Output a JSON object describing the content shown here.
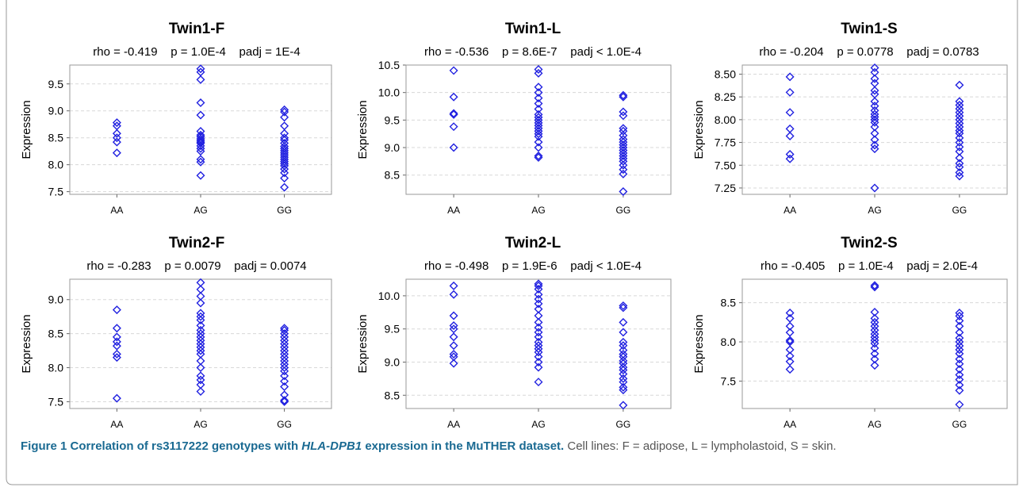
{
  "colors": {
    "marker": "#2020e0",
    "grid": "#d8d8d8",
    "border": "#9a9a9a",
    "caption_lead": "#1a6a92"
  },
  "chart_data": [
    {
      "type": "scatter",
      "title": "Twin1-F",
      "stats": "rho = -0.419    p = 1.0E-4    padj = 1E-4",
      "ylabel": "Expression",
      "categories": [
        "AA",
        "AG",
        "GG"
      ],
      "ylim": [
        7.45,
        9.85
      ],
      "yticks": [
        7.5,
        8.0,
        8.5,
        9.0,
        9.5
      ],
      "yticklabels": [
        "7.5",
        "8.0",
        "8.5",
        "9.0",
        "9.5"
      ],
      "grid": true,
      "points": [
        [
          8.22,
          8.42,
          8.5,
          8.58,
          8.72,
          8.78
        ],
        [
          7.8,
          8.05,
          8.1,
          8.25,
          8.3,
          8.35,
          8.4,
          8.42,
          8.45,
          8.48,
          8.52,
          8.55,
          8.62,
          8.92,
          9.15,
          9.58,
          9.72,
          9.78
        ],
        [
          7.58,
          7.75,
          7.85,
          7.92,
          7.98,
          8.02,
          8.06,
          8.1,
          8.14,
          8.18,
          8.22,
          8.26,
          8.3,
          8.34,
          8.4,
          8.46,
          8.5,
          8.58,
          8.72,
          8.88,
          8.98,
          9.02
        ]
      ]
    },
    {
      "type": "scatter",
      "title": "Twin1-L",
      "stats": "rho = -0.536    p = 8.6E-7    padj < 1.0E-4",
      "ylabel": "Expression",
      "categories": [
        "AA",
        "AG",
        "GG"
      ],
      "ylim": [
        8.15,
        10.5
      ],
      "yticks": [
        8.5,
        9.0,
        9.5,
        10.0,
        10.5
      ],
      "yticklabels": [
        "8.5",
        "9.0",
        "9.5",
        "10.0",
        "10.5"
      ],
      "grid": true,
      "points": [
        [
          9.0,
          9.38,
          9.6,
          9.62,
          9.92,
          10.4
        ],
        [
          8.82,
          8.85,
          9.0,
          9.1,
          9.2,
          9.25,
          9.3,
          9.35,
          9.4,
          9.45,
          9.5,
          9.55,
          9.6,
          9.7,
          9.8,
          9.9,
          10.0,
          10.1,
          10.35,
          10.42
        ],
        [
          8.2,
          8.52,
          8.6,
          8.68,
          8.75,
          8.8,
          8.85,
          8.9,
          8.95,
          9.0,
          9.05,
          9.1,
          9.15,
          9.22,
          9.3,
          9.35,
          9.58,
          9.65,
          9.92,
          9.95
        ]
      ]
    },
    {
      "type": "scatter",
      "title": "Twin1-S",
      "stats": "rho = -0.204    p = 0.0778    padj = 0.0783",
      "ylabel": "Expression",
      "categories": [
        "AA",
        "AG",
        "GG"
      ],
      "ylim": [
        7.18,
        8.6
      ],
      "yticks": [
        7.25,
        7.5,
        7.75,
        8.0,
        8.25,
        8.5
      ],
      "yticklabels": [
        "7.25",
        "7.50",
        "7.75",
        "8.00",
        "8.25",
        "8.50"
      ],
      "grid": true,
      "points": [
        [
          7.57,
          7.62,
          7.82,
          7.9,
          8.08,
          8.3,
          8.47
        ],
        [
          7.25,
          7.68,
          7.72,
          7.78,
          7.85,
          7.92,
          7.97,
          8.0,
          8.03,
          8.06,
          8.1,
          8.15,
          8.2,
          8.28,
          8.32,
          8.4,
          8.45,
          8.52,
          8.57
        ],
        [
          7.38,
          7.42,
          7.48,
          7.52,
          7.58,
          7.65,
          7.7,
          7.75,
          7.8,
          7.85,
          7.88,
          7.92,
          7.96,
          8.0,
          8.04,
          8.08,
          8.12,
          8.16,
          8.2,
          8.38
        ]
      ]
    },
    {
      "type": "scatter",
      "title": "Twin2-F",
      "stats": "rho = -0.283    p = 0.0079    padj = 0.0074",
      "ylabel": "Expression",
      "categories": [
        "AA",
        "AG",
        "GG"
      ],
      "ylim": [
        7.4,
        9.3
      ],
      "yticks": [
        7.5,
        8.0,
        8.5,
        9.0
      ],
      "yticklabels": [
        "7.5",
        "8.0",
        "8.5",
        "9.0"
      ],
      "grid": true,
      "points": [
        [
          7.55,
          8.15,
          8.2,
          8.32,
          8.38,
          8.45,
          8.58,
          8.85
        ],
        [
          7.65,
          7.75,
          7.82,
          7.88,
          8.0,
          8.1,
          8.2,
          8.25,
          8.3,
          8.35,
          8.4,
          8.45,
          8.5,
          8.55,
          8.62,
          8.7,
          8.75,
          8.8,
          8.95,
          9.05,
          9.15,
          9.25
        ],
        [
          7.5,
          7.52,
          7.6,
          7.72,
          7.8,
          7.88,
          7.95,
          8.0,
          8.05,
          8.1,
          8.15,
          8.2,
          8.25,
          8.3,
          8.35,
          8.4,
          8.45,
          8.5,
          8.55,
          8.58
        ]
      ]
    },
    {
      "type": "scatter",
      "title": "Twin2-L",
      "stats": "rho = -0.498    p = 1.9E-6    padj < 1.0E-4",
      "ylabel": "Expression",
      "categories": [
        "AA",
        "AG",
        "GG"
      ],
      "ylim": [
        8.3,
        10.25
      ],
      "yticks": [
        8.5,
        9.0,
        9.5,
        10.0
      ],
      "yticklabels": [
        "8.5",
        "9.0",
        "9.5",
        "10.0"
      ],
      "grid": true,
      "points": [
        [
          8.98,
          9.08,
          9.12,
          9.25,
          9.38,
          9.5,
          9.55,
          9.7,
          10.02,
          10.15
        ],
        [
          8.7,
          8.92,
          9.0,
          9.08,
          9.15,
          9.2,
          9.25,
          9.3,
          9.38,
          9.45,
          9.52,
          9.6,
          9.7,
          9.8,
          9.88,
          9.95,
          10.02,
          10.1,
          10.15,
          10.18
        ],
        [
          8.35,
          8.58,
          8.62,
          8.7,
          8.75,
          8.82,
          8.88,
          8.92,
          8.98,
          9.02,
          9.08,
          9.12,
          9.18,
          9.25,
          9.3,
          9.45,
          9.6,
          9.82,
          9.85
        ]
      ]
    },
    {
      "type": "scatter",
      "title": "Twin2-S",
      "stats": "rho = -0.405    p = 1.0E-4    padj = 2.0E-4",
      "ylabel": "Expression",
      "categories": [
        "AA",
        "AG",
        "GG"
      ],
      "ylim": [
        7.15,
        8.8
      ],
      "yticks": [
        7.5,
        8.0,
        8.5
      ],
      "yticklabels": [
        "7.5",
        "8.0",
        "8.5"
      ],
      "grid": true,
      "points": [
        [
          7.65,
          7.75,
          7.82,
          7.9,
          8.0,
          8.02,
          8.12,
          8.2,
          8.3,
          8.37
        ],
        [
          7.7,
          7.78,
          7.85,
          7.92,
          7.98,
          8.02,
          8.06,
          8.1,
          8.15,
          8.2,
          8.25,
          8.3,
          8.38,
          8.7,
          8.72
        ],
        [
          7.2,
          7.38,
          7.45,
          7.52,
          7.58,
          7.65,
          7.72,
          7.78,
          7.85,
          7.9,
          7.95,
          8.0,
          8.05,
          8.12,
          8.2,
          8.27,
          8.33,
          8.37
        ]
      ]
    }
  ],
  "caption": {
    "label": "Figure 1",
    "text_before": "Correlation of rs3117222 genotypes with",
    "gene": "HLA-DPB1",
    "text_after": "expression in the MuTHER dataset.",
    "detail": "Cell lines: F = adipose, L = lympholastoid, S = skin."
  }
}
